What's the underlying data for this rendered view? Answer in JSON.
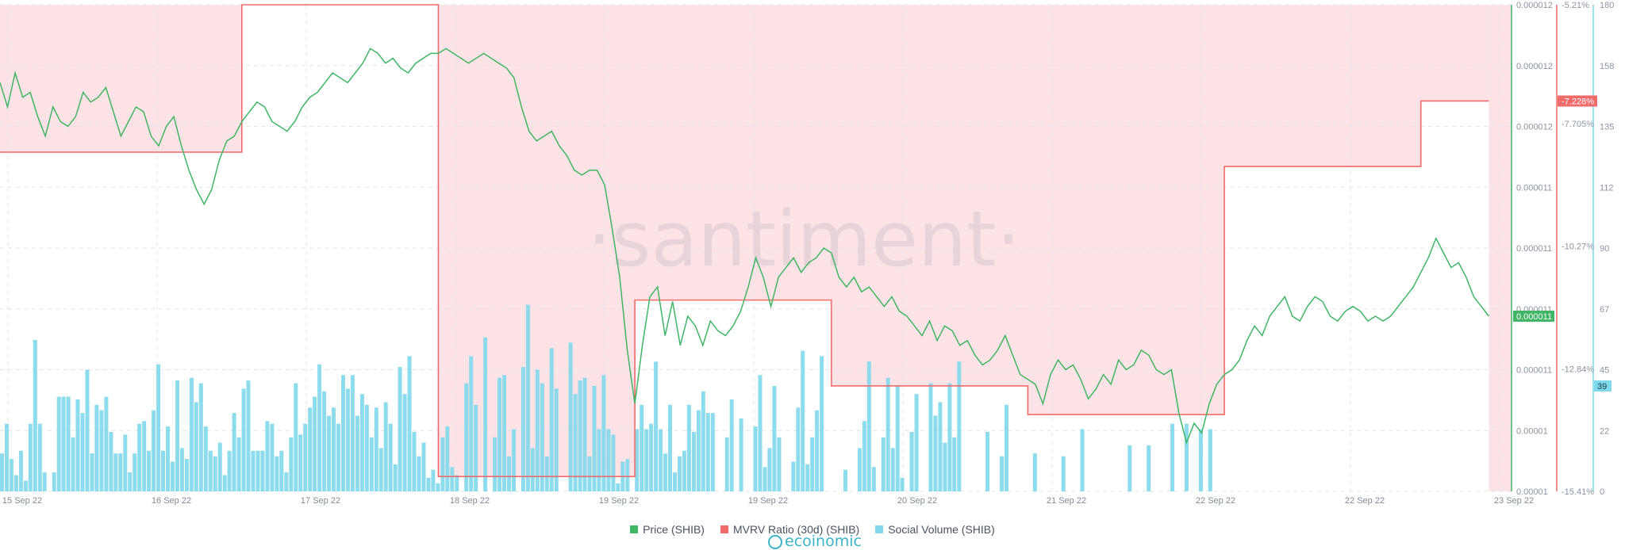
{
  "watermark": "·santiment·",
  "credit": "ecoinomic",
  "legend": [
    {
      "label": "Price (SHIB)",
      "color": "#3fb565"
    },
    {
      "label": "MVRV Ratio (30d) (SHIB)",
      "color": "#f06a6a"
    },
    {
      "label": "Social Volume (SHIB)",
      "color": "#7fd8ec"
    }
  ],
  "chart_data": {
    "type": "line",
    "x_ticks": [
      "15 Sep 22",
      "16 Sep 22",
      "17 Sep 22",
      "18 Sep 22",
      "19 Sep 22",
      "19 Sep 22",
      "20 Sep 22",
      "21 Sep 22",
      "22 Sep 22",
      "22 Sep 22",
      "23 Sep 22"
    ],
    "axes": {
      "price": {
        "ticks": [
          "0.000012",
          "0.000012",
          "0.000012",
          "0.000011",
          "0.000011",
          "0.000011",
          "0.000011",
          "0.00001",
          "0.00001"
        ],
        "current_label": "0.000011"
      },
      "mvrv": {
        "ticks": [
          "-5.21%",
          "-7.705%",
          "-10.27%",
          "-12.84%",
          "-15.41%"
        ],
        "current_label": "-7.228%",
        "range": [
          -15.41,
          -5.21
        ]
      },
      "social": {
        "ticks": [
          "180",
          "158",
          "135",
          "112",
          "90",
          "67",
          "45",
          "22",
          "0"
        ],
        "current_label": "39",
        "range": [
          0,
          180
        ]
      }
    },
    "series": [
      {
        "name": "Price (SHIB)",
        "color": "#3fb565",
        "normalized_points": [
          [
            0,
            84
          ],
          [
            0.5,
            79
          ],
          [
            1,
            86
          ],
          [
            1.5,
            81
          ],
          [
            2,
            82
          ],
          [
            2.5,
            77
          ],
          [
            3,
            73
          ],
          [
            3.5,
            79
          ],
          [
            4,
            76
          ],
          [
            4.5,
            75
          ],
          [
            5,
            77
          ],
          [
            5.5,
            82
          ],
          [
            6,
            80
          ],
          [
            6.5,
            81
          ],
          [
            7,
            83
          ],
          [
            7.5,
            78
          ],
          [
            8,
            73
          ],
          [
            8.5,
            76
          ],
          [
            9,
            79
          ],
          [
            9.5,
            78
          ],
          [
            10,
            73
          ],
          [
            10.5,
            71
          ],
          [
            11,
            75
          ],
          [
            11.5,
            77
          ],
          [
            12,
            71
          ],
          [
            12.5,
            66
          ],
          [
            13,
            62
          ],
          [
            13.5,
            59
          ],
          [
            14,
            62
          ],
          [
            14.5,
            68
          ],
          [
            15,
            72
          ],
          [
            15.5,
            73
          ],
          [
            16,
            76
          ],
          [
            16.5,
            78
          ],
          [
            17,
            80
          ],
          [
            17.5,
            79
          ],
          [
            18,
            76
          ],
          [
            18.5,
            75
          ],
          [
            19,
            74
          ],
          [
            19.5,
            76
          ],
          [
            20,
            79
          ],
          [
            20.5,
            81
          ],
          [
            21,
            82
          ],
          [
            21.5,
            84
          ],
          [
            22,
            86
          ],
          [
            22.5,
            85
          ],
          [
            23,
            84
          ],
          [
            23.5,
            86
          ],
          [
            24,
            88
          ],
          [
            24.5,
            91
          ],
          [
            25,
            90
          ],
          [
            25.5,
            88
          ],
          [
            26,
            89
          ],
          [
            26.5,
            87
          ],
          [
            27,
            86
          ],
          [
            27.5,
            88
          ],
          [
            28,
            89
          ],
          [
            28.5,
            90
          ],
          [
            29,
            90
          ],
          [
            29.5,
            91
          ],
          [
            30,
            90
          ],
          [
            30.5,
            89
          ],
          [
            31,
            88
          ],
          [
            31.5,
            89
          ],
          [
            32,
            90
          ],
          [
            32.5,
            89
          ],
          [
            33,
            88
          ],
          [
            33.5,
            87
          ],
          [
            34,
            85
          ],
          [
            34.5,
            79
          ],
          [
            35,
            74
          ],
          [
            35.5,
            72
          ],
          [
            36,
            73
          ],
          [
            36.5,
            74
          ],
          [
            37,
            71
          ],
          [
            37.5,
            69
          ],
          [
            38,
            66
          ],
          [
            38.5,
            65
          ],
          [
            39,
            66
          ],
          [
            39.5,
            66
          ],
          [
            40,
            63
          ],
          [
            40.5,
            54
          ],
          [
            41,
            44
          ],
          [
            41.5,
            29
          ],
          [
            42,
            18
          ],
          [
            42.5,
            30
          ],
          [
            43,
            40
          ],
          [
            43.5,
            42
          ],
          [
            44,
            32
          ],
          [
            44.5,
            39
          ],
          [
            45,
            30
          ],
          [
            45.5,
            36
          ],
          [
            46,
            34
          ],
          [
            46.5,
            30
          ],
          [
            47,
            35
          ],
          [
            47.5,
            33
          ],
          [
            48,
            32
          ],
          [
            48.5,
            34
          ],
          [
            49,
            37
          ],
          [
            49.5,
            42
          ],
          [
            50,
            48
          ],
          [
            50.5,
            44
          ],
          [
            51,
            38
          ],
          [
            51.5,
            44
          ],
          [
            52,
            46
          ],
          [
            52.5,
            48
          ],
          [
            53,
            45
          ],
          [
            53.5,
            47
          ],
          [
            54,
            48
          ],
          [
            54.5,
            50
          ],
          [
            55,
            49
          ],
          [
            55.5,
            44
          ],
          [
            56,
            42
          ],
          [
            56.5,
            44
          ],
          [
            57,
            41
          ],
          [
            57.5,
            42
          ],
          [
            58,
            40
          ],
          [
            58.5,
            38
          ],
          [
            59,
            40
          ],
          [
            59.5,
            37
          ],
          [
            60,
            36
          ],
          [
            60.5,
            34
          ],
          [
            61,
            32
          ],
          [
            61.5,
            35
          ],
          [
            62,
            31
          ],
          [
            62.5,
            34
          ],
          [
            63,
            33
          ],
          [
            63.5,
            30
          ],
          [
            64,
            31
          ],
          [
            64.5,
            28
          ],
          [
            65,
            26
          ],
          [
            65.5,
            27
          ],
          [
            66,
            29
          ],
          [
            66.5,
            32
          ],
          [
            67,
            28
          ],
          [
            67.5,
            24
          ],
          [
            68,
            23
          ],
          [
            68.5,
            22
          ],
          [
            69,
            18
          ],
          [
            69.5,
            24
          ],
          [
            70,
            27
          ],
          [
            70.5,
            25
          ],
          [
            71,
            26
          ],
          [
            71.5,
            23
          ],
          [
            72,
            19
          ],
          [
            72.5,
            21
          ],
          [
            73,
            24
          ],
          [
            73.5,
            22
          ],
          [
            74,
            27
          ],
          [
            74.5,
            25
          ],
          [
            75,
            26
          ],
          [
            75.5,
            29
          ],
          [
            76,
            28
          ],
          [
            76.5,
            25
          ],
          [
            77,
            24
          ],
          [
            77.5,
            25
          ],
          [
            78,
            16
          ],
          [
            78.5,
            10
          ],
          [
            79,
            14
          ],
          [
            79.5,
            12
          ],
          [
            80,
            18
          ],
          [
            80.5,
            22
          ],
          [
            81,
            24
          ],
          [
            81.5,
            25
          ],
          [
            82,
            27
          ],
          [
            82.5,
            31
          ],
          [
            83,
            34
          ],
          [
            83.5,
            32
          ],
          [
            84,
            36
          ],
          [
            84.5,
            38
          ],
          [
            85,
            40
          ],
          [
            85.5,
            36
          ],
          [
            86,
            35
          ],
          [
            86.5,
            38
          ],
          [
            87,
            40
          ],
          [
            87.5,
            39
          ],
          [
            88,
            36
          ],
          [
            88.5,
            35
          ],
          [
            89,
            37
          ],
          [
            89.5,
            38
          ],
          [
            90,
            37
          ],
          [
            90.5,
            35
          ],
          [
            91,
            36
          ],
          [
            91.5,
            35
          ],
          [
            92,
            36
          ],
          [
            92.5,
            38
          ],
          [
            93,
            40
          ],
          [
            93.5,
            42
          ],
          [
            94,
            45
          ],
          [
            94.5,
            48
          ],
          [
            95,
            52
          ],
          [
            95.5,
            49
          ],
          [
            96,
            46
          ],
          [
            96.5,
            47
          ],
          [
            97,
            44
          ],
          [
            97.5,
            40
          ],
          [
            98,
            38
          ],
          [
            98.5,
            36
          ]
        ]
      },
      {
        "name": "MVRV Ratio (30d) (SHIB)",
        "color": "#f06a6a",
        "steps": [
          {
            "from": 0,
            "to": 16,
            "value": -8.3
          },
          {
            "from": 16,
            "to": 29,
            "value": -5.21
          },
          {
            "from": 29,
            "to": 42,
            "value": -15.1
          },
          {
            "from": 42,
            "to": 55,
            "value": -11.4
          },
          {
            "from": 55,
            "to": 68,
            "value": -13.2
          },
          {
            "from": 68,
            "to": 81,
            "value": -13.8
          },
          {
            "from": 81,
            "to": 94,
            "value": -8.6
          },
          {
            "from": 94,
            "to": 98.5,
            "value": -7.228
          }
        ]
      },
      {
        "name": "Social Volume (SHIB)",
        "color": "#7fd8ec",
        "values": [
          14,
          25,
          12,
          6,
          15,
          4,
          25,
          56,
          25,
          7,
          0,
          7,
          35,
          35,
          35,
          20,
          34,
          29,
          45,
          14,
          32,
          30,
          35,
          22,
          14,
          14,
          21,
          7,
          14,
          25,
          26,
          15,
          30,
          47,
          15,
          24,
          11,
          41,
          16,
          12,
          42,
          33,
          40,
          24,
          15,
          13,
          18,
          6,
          15,
          29,
          20,
          38,
          41,
          15,
          15,
          15,
          26,
          25,
          13,
          15,
          7,
          20,
          40,
          21,
          25,
          31,
          35,
          47,
          37,
          28,
          31,
          25,
          43,
          38,
          43,
          28,
          36,
          32,
          20,
          31,
          16,
          33,
          25,
          10,
          46,
          36,
          50,
          22,
          13,
          18,
          5,
          8,
          3,
          20,
          24,
          9,
          6,
          0,
          40,
          50,
          32,
          0,
          57,
          0,
          20,
          42,
          43,
          13,
          23,
          0,
          46,
          69,
          16,
          45,
          40,
          13,
          53,
          38,
          0,
          0,
          55,
          36,
          41,
          42,
          13,
          39,
          23,
          43,
          23,
          21,
          3,
          11,
          12,
          0,
          23,
          32,
          23,
          25,
          48,
          23,
          14,
          32,
          7,
          13,
          15,
          32,
          22,
          30,
          37,
          29,
          29,
          0,
          0,
          20,
          34,
          0,
          27,
          0,
          0,
          24,
          43,
          9,
          16,
          39,
          20,
          0,
          0,
          11,
          31,
          52,
          10,
          20,
          30,
          50,
          0,
          0,
          0,
          0,
          8,
          0,
          0,
          16,
          26,
          48,
          9,
          0,
          20,
          42,
          16,
          39,
          5,
          0,
          22,
          36,
          0,
          0,
          40,
          28,
          33,
          18,
          40,
          20,
          48,
          0,
          0,
          0,
          0,
          0,
          22,
          0,
          0,
          13,
          32,
          0,
          0,
          0,
          0,
          0,
          14,
          0,
          0,
          0,
          0,
          0,
          13,
          0,
          0,
          0,
          23,
          0,
          0,
          0,
          0,
          0,
          0,
          0,
          0,
          0,
          17,
          0,
          0,
          0,
          17,
          0,
          0,
          0,
          0,
          25,
          0,
          0,
          25,
          0,
          0,
          23,
          0,
          23,
          0,
          0,
          0,
          0,
          0,
          0,
          0,
          0,
          0,
          0,
          0,
          0,
          0,
          0,
          0,
          0,
          0,
          0,
          0,
          0,
          0,
          0,
          0,
          0,
          0,
          0,
          0,
          0,
          0,
          0,
          0,
          0,
          0,
          0,
          0,
          0,
          0,
          0,
          0,
          0,
          0,
          0,
          0,
          0,
          0,
          0,
          0,
          0,
          0,
          0,
          0,
          0,
          0,
          0,
          0,
          0,
          0,
          0,
          0,
          0,
          0,
          0,
          0
        ]
      }
    ],
    "shaded_band": {
      "color": "#fde3e5",
      "note": "MVRV region shading above step line"
    }
  }
}
